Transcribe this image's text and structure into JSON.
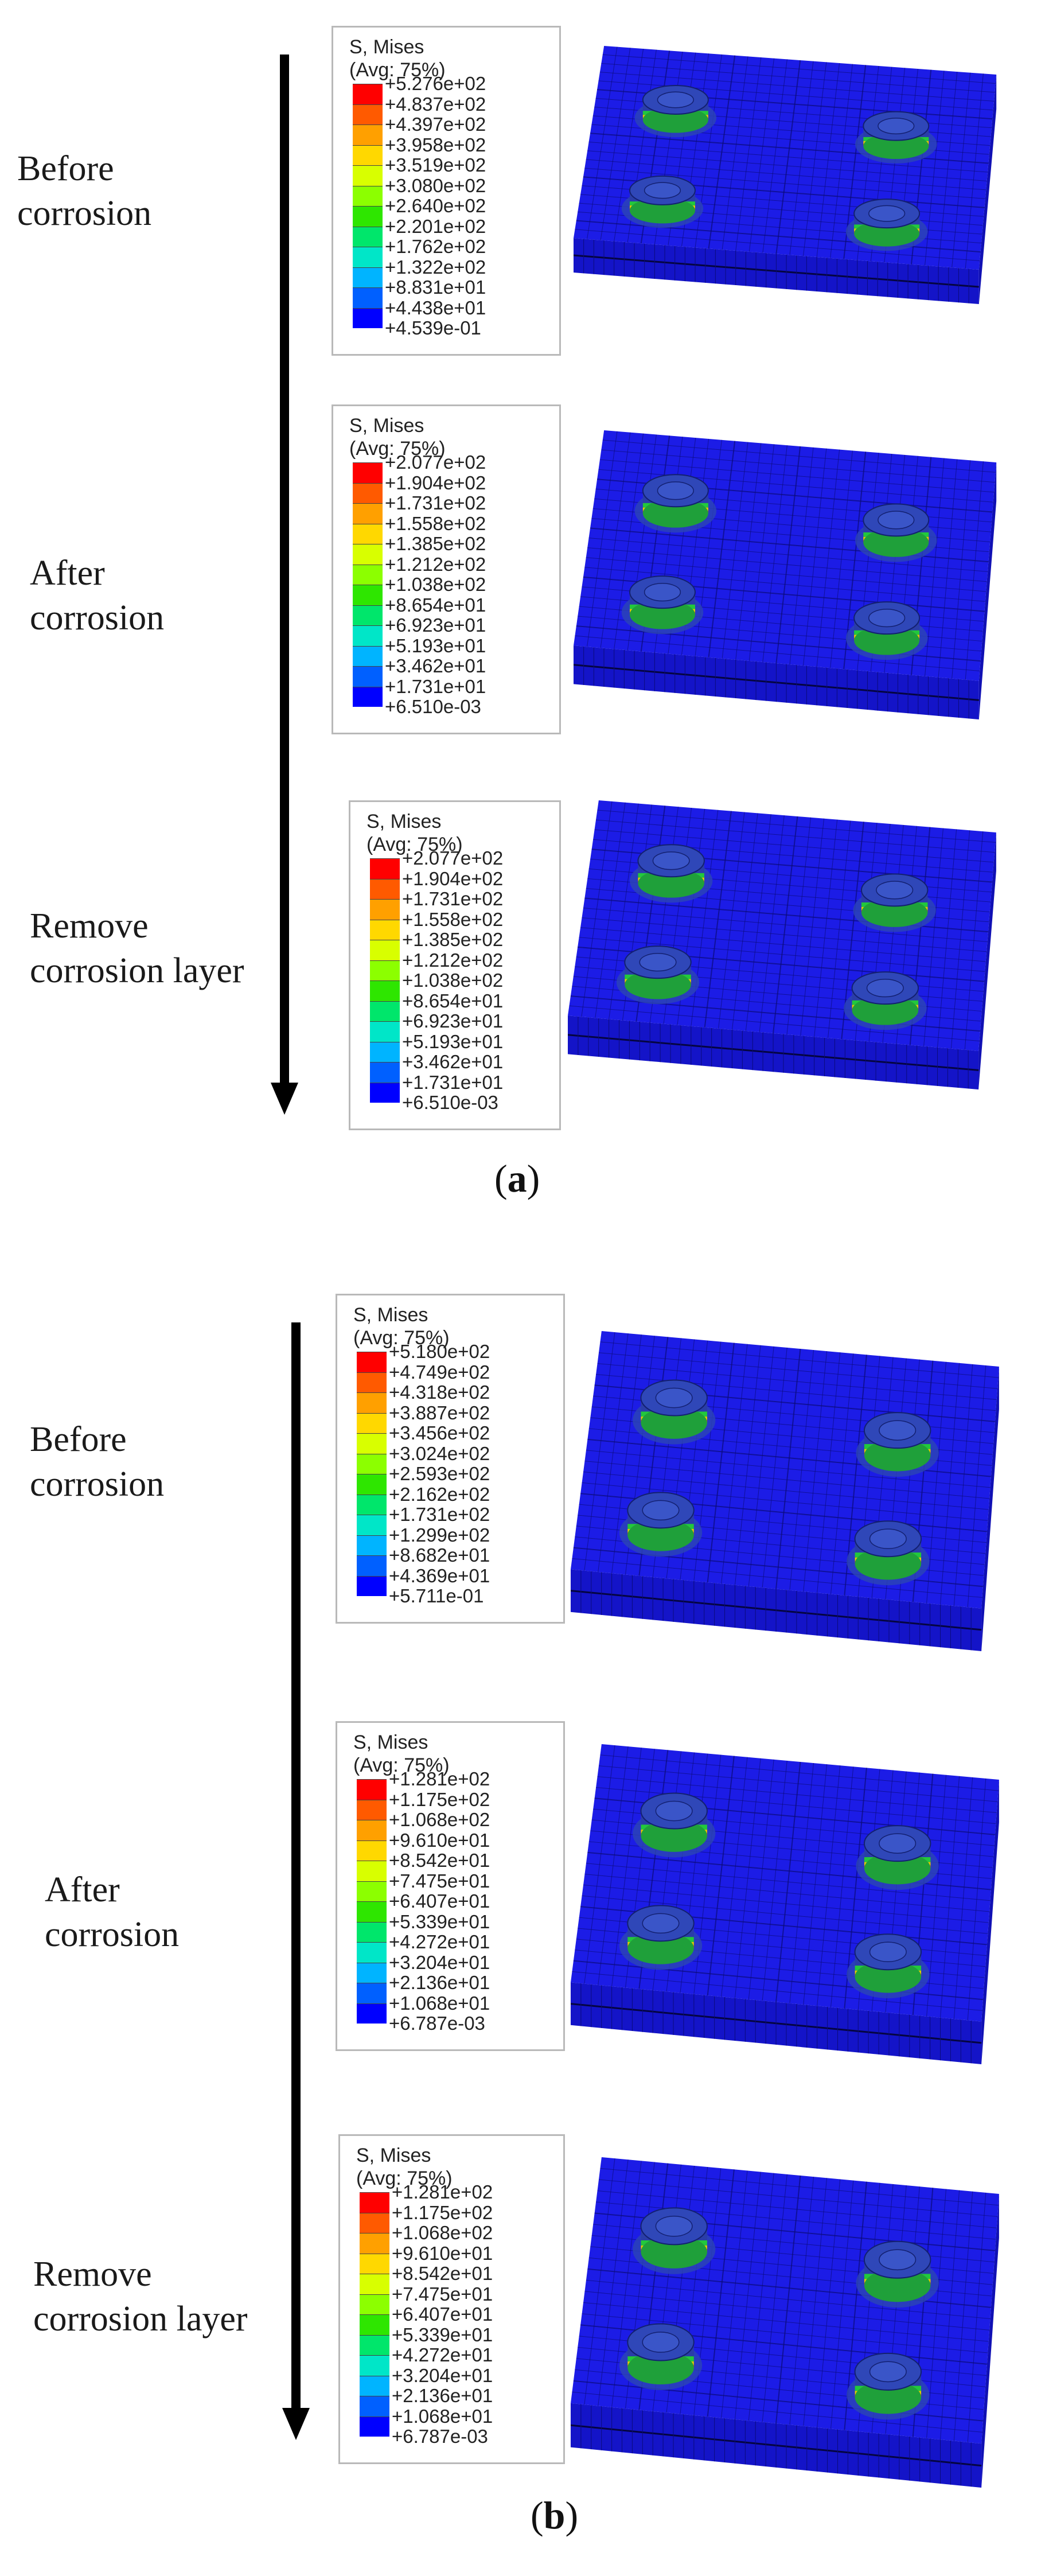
{
  "legend_title": [
    "S, Mises",
    "(Avg: 75%)"
  ],
  "legend_colors": [
    "#ff0000",
    "#ff5a00",
    "#ffa000",
    "#ffd800",
    "#d8ff00",
    "#8cff00",
    "#2ee600",
    "#00e66b",
    "#00e6c8",
    "#00b4ff",
    "#0060ff",
    "#0000ff"
  ],
  "model_colors": {
    "plate": "#1c1ce6",
    "mesh_line": "#0b0b7a",
    "bolt": "#2a3da8"
  },
  "figures": [
    {
      "caption_letter": "a",
      "stages": [
        {
          "label": [
            "Before",
            "corrosion"
          ],
          "ticks": [
            "+5.276e+02",
            "+4.837e+02",
            "+4.397e+02",
            "+3.958e+02",
            "+3.519e+02",
            "+3.080e+02",
            "+2.640e+02",
            "+2.201e+02",
            "+1.762e+02",
            "+1.322e+02",
            "+8.831e+01",
            "+4.438e+01",
            "+4.539e-01"
          ]
        },
        {
          "label": [
            "After",
            "corrosion"
          ],
          "ticks": [
            "+2.077e+02",
            "+1.904e+02",
            "+1.731e+02",
            "+1.558e+02",
            "+1.385e+02",
            "+1.212e+02",
            "+1.038e+02",
            "+8.654e+01",
            "+6.923e+01",
            "+5.193e+01",
            "+3.462e+01",
            "+1.731e+01",
            "+6.510e-03"
          ]
        },
        {
          "label": [
            "Remove",
            "corrosion layer"
          ],
          "ticks": [
            "+2.077e+02",
            "+1.904e+02",
            "+1.731e+02",
            "+1.558e+02",
            "+1.385e+02",
            "+1.212e+02",
            "+1.038e+02",
            "+8.654e+01",
            "+6.923e+01",
            "+5.193e+01",
            "+3.462e+01",
            "+1.731e+01",
            "+6.510e-03"
          ]
        }
      ]
    },
    {
      "caption_letter": "b",
      "stages": [
        {
          "label": [
            "Before",
            "corrosion"
          ],
          "ticks": [
            "+5.180e+02",
            "+4.749e+02",
            "+4.318e+02",
            "+3.887e+02",
            "+3.456e+02",
            "+3.024e+02",
            "+2.593e+02",
            "+2.162e+02",
            "+1.731e+02",
            "+1.299e+02",
            "+8.682e+01",
            "+4.369e+01",
            "+5.711e-01"
          ]
        },
        {
          "label": [
            "After",
            "corrosion"
          ],
          "ticks": [
            "+1.281e+02",
            "+1.175e+02",
            "+1.068e+02",
            "+9.610e+01",
            "+8.542e+01",
            "+7.475e+01",
            "+6.407e+01",
            "+5.339e+01",
            "+4.272e+01",
            "+3.204e+01",
            "+2.136e+01",
            "+1.068e+01",
            "+6.787e-03"
          ]
        },
        {
          "label": [
            "Remove",
            "corrosion layer"
          ],
          "ticks": [
            "+1.281e+02",
            "+1.175e+02",
            "+1.068e+02",
            "+9.610e+01",
            "+8.542e+01",
            "+7.475e+01",
            "+6.407e+01",
            "+5.339e+01",
            "+4.272e+01",
            "+3.204e+01",
            "+2.136e+01",
            "+1.068e+01",
            "+6.787e-03"
          ]
        }
      ]
    }
  ]
}
